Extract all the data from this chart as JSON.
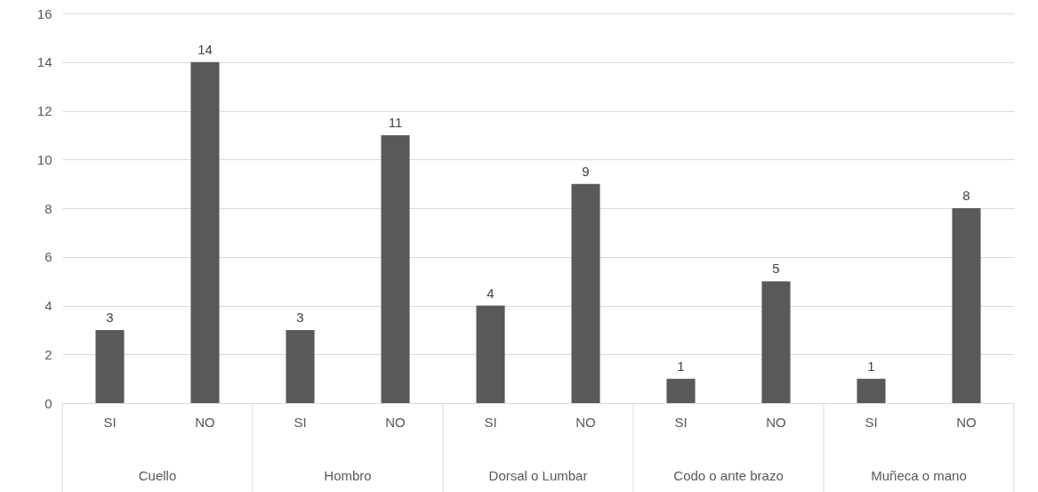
{
  "chart_data": {
    "type": "bar",
    "categories": [
      "SI",
      "NO",
      "SI",
      "NO",
      "SI",
      "NO",
      "SI",
      "NO",
      "SI",
      "NO"
    ],
    "values": [
      3,
      14,
      3,
      11,
      4,
      9,
      1,
      5,
      1,
      8
    ],
    "color": "#595959",
    "ylim": [
      0,
      16
    ],
    "yticks": [
      0,
      2,
      4,
      6,
      8,
      10,
      12,
      14,
      16
    ],
    "grid": "y",
    "data_labels": true,
    "annotations": [
      "Cuello",
      "Hombro",
      "Dorsal o Lumbar",
      "Codo o ante brazo",
      "Muñeca o mano"
    ]
  }
}
